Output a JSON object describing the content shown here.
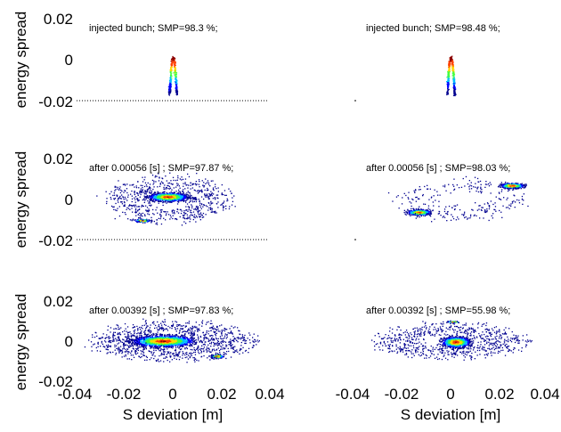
{
  "chart_data": {
    "type": "scatter",
    "xlabel": "S deviation [m]",
    "ylabel": "energy spread",
    "xlim": [
      -0.04,
      0.04
    ],
    "ylim": [
      -0.02,
      0.02
    ],
    "x_ticks": [
      "-0.04",
      "-0.02",
      "0",
      "0.02",
      "0.04"
    ],
    "y_ticks": [
      "-0.02",
      "0",
      "0.02"
    ],
    "colormap": [
      "#00008f",
      "#0000ff",
      "#00bfff",
      "#40ff40",
      "#ffd700",
      "#ff4000",
      "#8b0000"
    ],
    "panels": [
      {
        "annotation": "injected bunch; SMP=98.3 %;",
        "clusters": [
          {
            "shape": "chevron",
            "x": 0.0,
            "y": 0.001,
            "half_width": 0.0015,
            "depth": 0.018,
            "points": 380
          }
        ]
      },
      {
        "annotation": "injected bunch; SMP=98.48 %;",
        "clusters": [
          {
            "shape": "chevron",
            "x": 0.0,
            "y": 0.001,
            "half_width": 0.0015,
            "depth": 0.018,
            "points": 380
          }
        ]
      },
      {
        "annotation": "after 0.00056 [s] ; SMP=97.87 %;",
        "clusters": [
          {
            "shape": "blob",
            "x": -0.002,
            "y": 0.001,
            "sx": 0.0075,
            "sy": 0.002,
            "points": 1300
          },
          {
            "shape": "blob",
            "x": -0.0125,
            "y": -0.0105,
            "sx": 0.003,
            "sy": 0.0007,
            "points": 140
          },
          {
            "shape": "halo",
            "x": -0.002,
            "y": 0.0,
            "sx": 0.024,
            "sy": 0.011,
            "points": 650
          }
        ]
      },
      {
        "annotation": "after 0.00056 [s] ; SMP=98.03 %;",
        "clusters": [
          {
            "shape": "blob",
            "x": 0.025,
            "y": 0.0065,
            "sx": 0.0045,
            "sy": 0.0012,
            "points": 500
          },
          {
            "shape": "blob",
            "x": -0.013,
            "y": -0.0065,
            "sx": 0.0045,
            "sy": 0.0013,
            "points": 520
          },
          {
            "shape": "halo",
            "x": 0.004,
            "y": 0.0,
            "sx": 0.026,
            "sy": 0.01,
            "points": 260
          }
        ]
      },
      {
        "annotation": "after 0.00392 [s] ; SMP=97.83 %;",
        "clusters": [
          {
            "shape": "blob",
            "x": -0.004,
            "y": 0.0,
            "sx": 0.012,
            "sy": 0.0027,
            "points": 1900
          },
          {
            "shape": "blob",
            "x": 0.018,
            "y": -0.0075,
            "sx": 0.0025,
            "sy": 0.0009,
            "points": 170
          },
          {
            "shape": "halo",
            "x": 0.0,
            "y": 0.0,
            "sx": 0.032,
            "sy": 0.0095,
            "points": 950
          }
        ]
      },
      {
        "annotation": "after 0.00392 [s] ; SMP=55.98 %;",
        "clusters": [
          {
            "shape": "blob",
            "x": 0.002,
            "y": -0.0005,
            "sx": 0.0055,
            "sy": 0.0025,
            "points": 1100
          },
          {
            "shape": "blob",
            "x": 0.001,
            "y": 0.0095,
            "sx": 0.0022,
            "sy": 0.0004,
            "points": 90
          },
          {
            "shape": "halo",
            "x": 0.0,
            "y": 0.0,
            "sx": 0.03,
            "sy": 0.0085,
            "points": 700
          }
        ]
      }
    ]
  }
}
